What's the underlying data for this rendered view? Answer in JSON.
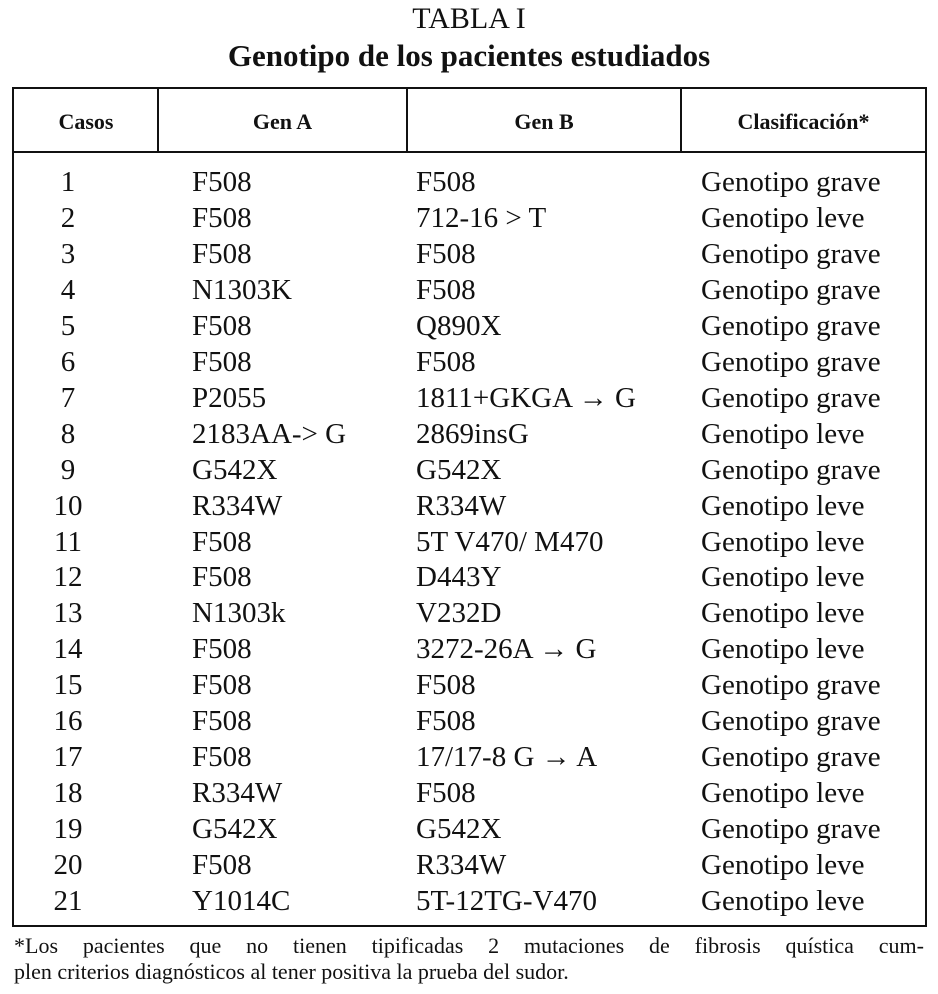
{
  "header": {
    "title": "TABLA I",
    "subtitle": "Genotipo de los pacientes estudiados"
  },
  "table": {
    "columns": [
      "Casos",
      "Gen A",
      "Gen B",
      "Clasificación*"
    ],
    "rows": [
      [
        "1",
        "F508",
        "F508",
        "Genotipo grave"
      ],
      [
        "2",
        "F508",
        "712-16 > T",
        "Genotipo leve"
      ],
      [
        "3",
        "F508",
        "F508",
        "Genotipo grave"
      ],
      [
        "4",
        "N1303K",
        "F508",
        "Genotipo grave"
      ],
      [
        "5",
        "F508",
        "Q890X",
        "Genotipo grave"
      ],
      [
        "6",
        "F508",
        "F508",
        "Genotipo grave"
      ],
      [
        "7",
        "P2055",
        "1811+GKGA → G",
        "Genotipo grave"
      ],
      [
        "8",
        "2183AA-> G",
        "2869insG",
        "Genotipo leve"
      ],
      [
        "9",
        "G542X",
        "G542X",
        "Genotipo grave"
      ],
      [
        "10",
        "R334W",
        "R334W",
        "Genotipo leve"
      ],
      [
        "11",
        "F508",
        "5T V470/ M470",
        "Genotipo leve"
      ],
      [
        "12",
        "F508",
        "D443Y",
        "Genotipo leve"
      ],
      [
        "13",
        "N1303k",
        "V232D",
        "Genotipo leve"
      ],
      [
        "14",
        "F508",
        "3272-26A → G",
        "Genotipo leve"
      ],
      [
        "15",
        "F508",
        "F508",
        "Genotipo grave"
      ],
      [
        "16",
        "F508",
        "F508",
        "Genotipo grave"
      ],
      [
        "17",
        "F508",
        "17/17-8 G → A",
        "Genotipo grave"
      ],
      [
        "18",
        "R334W",
        "F508",
        "Genotipo leve"
      ],
      [
        "19",
        "G542X",
        "G542X",
        "Genotipo grave"
      ],
      [
        "20",
        "F508",
        "R334W",
        "Genotipo leve"
      ],
      [
        "21",
        "Y1014C",
        "5T-12TG-V470",
        "Genotipo leve"
      ]
    ]
  },
  "footnote": [
    "*Los pacientes que no tienen tipificadas 2 mutaciones de fibrosis quística cum-",
    "plen criterios diagnósticos al tener positiva la prueba del sudor."
  ]
}
